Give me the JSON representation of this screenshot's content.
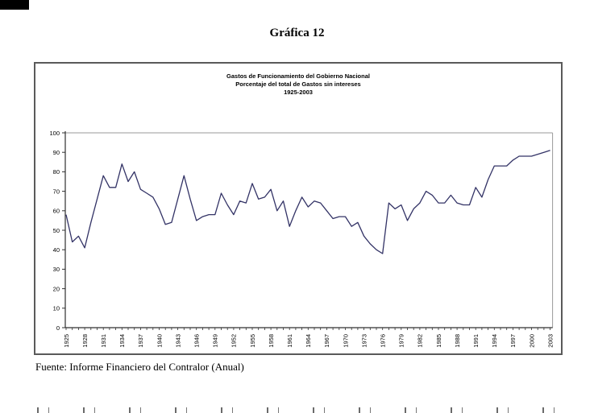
{
  "page": {
    "title": "Gráfica 12",
    "source_note": "Fuente: Informe Financiero del Contralor (Anual)"
  },
  "chart_data": {
    "type": "line",
    "title_lines": [
      "Gastos de Funcionamiento del Gobierno Nacional",
      "Porcentaje del total de Gastos sin intereses",
      "1925-2003"
    ],
    "line_color": "#333366",
    "axis_color": "#303030",
    "plot_border_color": "#999999",
    "grid": false,
    "legend_position": "none",
    "ylim": [
      0,
      100
    ],
    "y_ticks": [
      0,
      10,
      20,
      30,
      40,
      50,
      60,
      70,
      80,
      90,
      100
    ],
    "x_tick_labels": [
      "1925",
      "1928",
      "1931",
      "1934",
      "1937",
      "1940",
      "1943",
      "1946",
      "1949",
      "1952",
      "1955",
      "1958",
      "1961",
      "1964",
      "1967",
      "1970",
      "1973",
      "1976",
      "1979",
      "1982",
      "1985",
      "1988",
      "1991",
      "1994",
      "1997",
      "2000",
      "2003"
    ],
    "years": [
      1925,
      1926,
      1927,
      1928,
      1929,
      1930,
      1931,
      1932,
      1933,
      1934,
      1935,
      1936,
      1937,
      1938,
      1939,
      1940,
      1941,
      1942,
      1943,
      1944,
      1945,
      1946,
      1947,
      1948,
      1949,
      1950,
      1951,
      1952,
      1953,
      1954,
      1955,
      1956,
      1957,
      1958,
      1959,
      1960,
      1961,
      1962,
      1963,
      1964,
      1965,
      1966,
      1967,
      1968,
      1969,
      1970,
      1971,
      1972,
      1973,
      1974,
      1975,
      1976,
      1977,
      1978,
      1979,
      1980,
      1981,
      1982,
      1983,
      1984,
      1985,
      1986,
      1987,
      1988,
      1989,
      1990,
      1991,
      1992,
      1993,
      1994,
      1995,
      1996,
      1997,
      1998,
      1999,
      2000,
      2001,
      2002,
      2003
    ],
    "values": [
      58,
      44,
      47,
      41,
      54,
      66,
      78,
      72,
      72,
      84,
      75,
      80,
      71,
      69,
      67,
      61,
      53,
      54,
      66,
      78,
      66,
      55,
      57,
      58,
      58,
      69,
      63,
      58,
      65,
      64,
      74,
      66,
      67,
      71,
      60,
      65,
      52,
      60,
      67,
      62,
      65,
      64,
      60,
      56,
      57,
      57,
      52,
      54,
      47,
      43,
      40,
      38,
      64,
      61,
      63,
      55,
      61,
      64,
      70,
      68,
      64,
      64,
      68,
      64,
      63,
      63,
      72,
      67,
      76,
      83,
      83,
      83,
      86,
      88,
      88,
      88,
      89,
      90,
      91
    ]
  }
}
